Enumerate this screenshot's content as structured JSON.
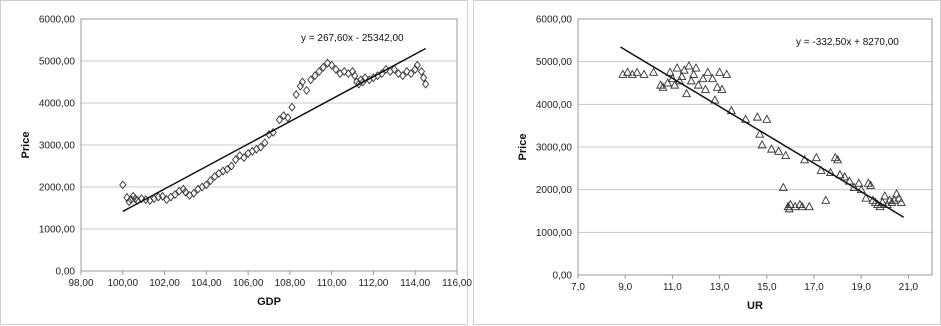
{
  "chart_data": [
    {
      "type": "scatter",
      "marker": "diamond",
      "xlabel": "GDP",
      "ylabel": "Price",
      "xlim": [
        98,
        116
      ],
      "ylim": [
        0,
        6000
      ],
      "x_ticks": [
        98,
        100,
        102,
        104,
        106,
        108,
        110,
        112,
        114,
        116
      ],
      "x_tick_labels": [
        "98,00",
        "100,00",
        "102,00",
        "104,00",
        "106,00",
        "108,00",
        "110,00",
        "112,00",
        "114,00",
        "116,00"
      ],
      "y_ticks": [
        0,
        1000,
        2000,
        3000,
        4000,
        5000,
        6000
      ],
      "y_tick_labels": [
        "0,00",
        "1000,00",
        "2000,00",
        "3000,00",
        "4000,00",
        "5000,00",
        "6000,00"
      ],
      "grid": "horizontal",
      "equation": "y = 267,60x - 25342,00",
      "trendline": {
        "slope": 267.6,
        "intercept": -25342.0,
        "x_range": [
          100.0,
          114.5
        ]
      },
      "series": [
        {
          "points": [
            [
              100.0,
              2050
            ],
            [
              100.2,
              1750
            ],
            [
              100.3,
              1650
            ],
            [
              100.4,
              1700
            ],
            [
              100.5,
              1780
            ],
            [
              100.6,
              1720
            ],
            [
              100.7,
              1680
            ],
            [
              100.9,
              1720
            ],
            [
              101.1,
              1700
            ],
            [
              101.3,
              1680
            ],
            [
              101.5,
              1720
            ],
            [
              101.7,
              1760
            ],
            [
              101.9,
              1780
            ],
            [
              102.1,
              1700
            ],
            [
              102.3,
              1760
            ],
            [
              102.5,
              1820
            ],
            [
              102.7,
              1900
            ],
            [
              102.9,
              1950
            ],
            [
              103.0,
              1880
            ],
            [
              103.2,
              1800
            ],
            [
              103.4,
              1850
            ],
            [
              103.6,
              1950
            ],
            [
              103.8,
              2000
            ],
            [
              104.0,
              2050
            ],
            [
              104.2,
              2150
            ],
            [
              104.4,
              2250
            ],
            [
              104.6,
              2320
            ],
            [
              104.8,
              2380
            ],
            [
              105.0,
              2420
            ],
            [
              105.2,
              2500
            ],
            [
              105.4,
              2650
            ],
            [
              105.6,
              2750
            ],
            [
              105.8,
              2700
            ],
            [
              106.0,
              2800
            ],
            [
              106.2,
              2850
            ],
            [
              106.4,
              2900
            ],
            [
              106.6,
              2950
            ],
            [
              106.8,
              3050
            ],
            [
              107.0,
              3250
            ],
            [
              107.2,
              3300
            ],
            [
              107.5,
              3600
            ],
            [
              107.7,
              3700
            ],
            [
              107.9,
              3650
            ],
            [
              108.1,
              3900
            ],
            [
              108.3,
              4200
            ],
            [
              108.5,
              4400
            ],
            [
              108.6,
              4500
            ],
            [
              108.8,
              4300
            ],
            [
              109.0,
              4550
            ],
            [
              109.2,
              4650
            ],
            [
              109.4,
              4750
            ],
            [
              109.6,
              4850
            ],
            [
              109.8,
              4950
            ],
            [
              110.0,
              4900
            ],
            [
              110.2,
              4800
            ],
            [
              110.4,
              4700
            ],
            [
              110.6,
              4750
            ],
            [
              110.8,
              4700
            ],
            [
              111.0,
              4750
            ],
            [
              111.1,
              4650
            ],
            [
              111.2,
              4500
            ],
            [
              111.3,
              4450
            ],
            [
              111.4,
              4550
            ],
            [
              111.5,
              4500
            ],
            [
              111.6,
              4600
            ],
            [
              111.8,
              4550
            ],
            [
              112.0,
              4600
            ],
            [
              112.2,
              4650
            ],
            [
              112.4,
              4700
            ],
            [
              112.6,
              4800
            ],
            [
              112.8,
              4750
            ],
            [
              113.0,
              4800
            ],
            [
              113.2,
              4700
            ],
            [
              113.4,
              4650
            ],
            [
              113.6,
              4750
            ],
            [
              113.8,
              4700
            ],
            [
              114.0,
              4800
            ],
            [
              114.1,
              4900
            ],
            [
              114.3,
              4750
            ],
            [
              114.4,
              4600
            ],
            [
              114.5,
              4450
            ]
          ]
        }
      ]
    },
    {
      "type": "scatter",
      "marker": "triangle",
      "xlabel": "UR",
      "ylabel": "Price",
      "xlim": [
        7,
        22
      ],
      "ylim": [
        0,
        6000
      ],
      "x_ticks": [
        7,
        9,
        11,
        13,
        15,
        17,
        19,
        21
      ],
      "x_tick_labels": [
        "7,0",
        "9,0",
        "11,0",
        "13,0",
        "15,0",
        "17,0",
        "19,0",
        "21,0"
      ],
      "y_ticks": [
        0,
        1000,
        2000,
        3000,
        4000,
        5000,
        6000
      ],
      "y_tick_labels": [
        "0,00",
        "1000,00",
        "2000,00",
        "3000,00",
        "4000,00",
        "5000,00",
        "6000,00"
      ],
      "grid": "horizontal",
      "equation": "y = -332,50x + 8270,00",
      "trendline": {
        "slope": -332.5,
        "intercept": 8270.0,
        "x_range": [
          8.8,
          20.8
        ]
      },
      "series": [
        {
          "points": [
            [
              8.9,
              4700
            ],
            [
              9.1,
              4750
            ],
            [
              9.3,
              4700
            ],
            [
              9.5,
              4750
            ],
            [
              9.8,
              4700
            ],
            [
              10.2,
              4750
            ],
            [
              10.5,
              4450
            ],
            [
              10.6,
              4400
            ],
            [
              10.8,
              4500
            ],
            [
              10.9,
              4750
            ],
            [
              11.0,
              4600
            ],
            [
              11.1,
              4450
            ],
            [
              11.2,
              4850
            ],
            [
              11.3,
              4550
            ],
            [
              11.4,
              4650
            ],
            [
              11.5,
              4800
            ],
            [
              11.6,
              4250
            ],
            [
              11.7,
              4900
            ],
            [
              11.8,
              4550
            ],
            [
              11.9,
              4700
            ],
            [
              12.0,
              4850
            ],
            [
              12.1,
              4450
            ],
            [
              12.3,
              4600
            ],
            [
              12.4,
              4350
            ],
            [
              12.5,
              4750
            ],
            [
              12.7,
              4600
            ],
            [
              12.8,
              4100
            ],
            [
              12.9,
              4400
            ],
            [
              13.0,
              4750
            ],
            [
              13.1,
              4350
            ],
            [
              13.3,
              4700
            ],
            [
              13.5,
              3850
            ],
            [
              14.1,
              3650
            ],
            [
              14.6,
              3700
            ],
            [
              14.7,
              3300
            ],
            [
              14.8,
              3050
            ],
            [
              15.0,
              3650
            ],
            [
              15.2,
              2950
            ],
            [
              15.5,
              2900
            ],
            [
              15.7,
              2050
            ],
            [
              15.8,
              2800
            ],
            [
              15.9,
              1600
            ],
            [
              15.95,
              1550
            ],
            [
              16.0,
              1650
            ],
            [
              16.2,
              1600
            ],
            [
              16.4,
              1650
            ],
            [
              16.5,
              1600
            ],
            [
              16.6,
              2700
            ],
            [
              16.8,
              1600
            ],
            [
              17.1,
              2750
            ],
            [
              17.3,
              2450
            ],
            [
              17.5,
              1750
            ],
            [
              17.7,
              2400
            ],
            [
              17.9,
              2750
            ],
            [
              18.0,
              2700
            ],
            [
              18.1,
              2350
            ],
            [
              18.3,
              2300
            ],
            [
              18.5,
              2200
            ],
            [
              18.7,
              2050
            ],
            [
              18.9,
              2150
            ],
            [
              19.0,
              2000
            ],
            [
              19.2,
              1800
            ],
            [
              19.3,
              2150
            ],
            [
              19.4,
              2100
            ],
            [
              19.5,
              1750
            ],
            [
              19.6,
              1700
            ],
            [
              19.7,
              1650
            ],
            [
              19.8,
              1600
            ],
            [
              19.9,
              1700
            ],
            [
              20.0,
              1850
            ],
            [
              20.1,
              1650
            ],
            [
              20.2,
              1750
            ],
            [
              20.3,
              1700
            ],
            [
              20.4,
              1750
            ],
            [
              20.5,
              1900
            ],
            [
              20.6,
              1800
            ],
            [
              20.7,
              1700
            ]
          ]
        }
      ]
    }
  ]
}
